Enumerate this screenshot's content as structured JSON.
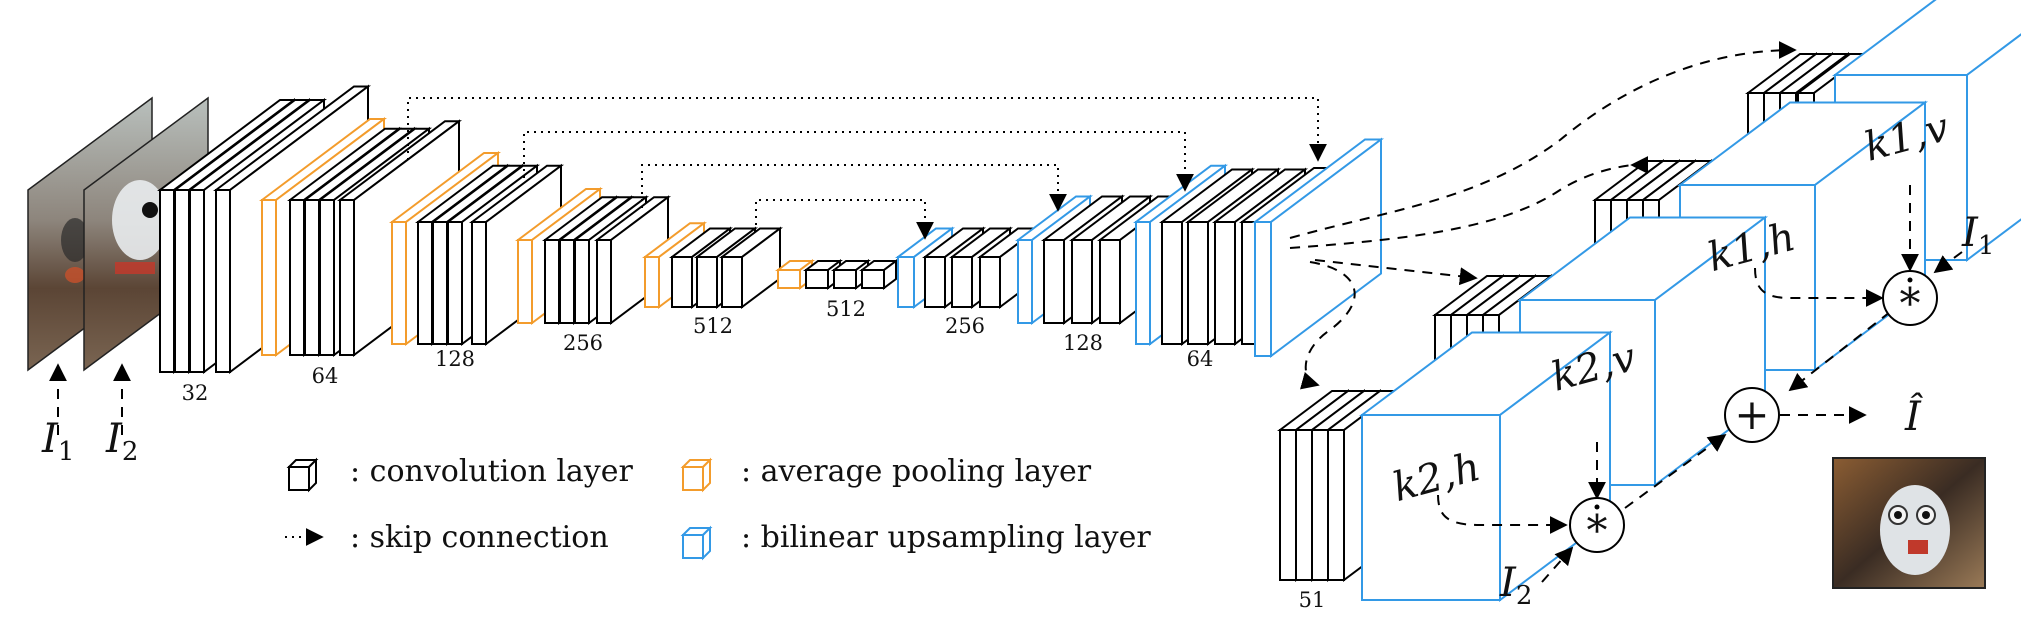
{
  "colors": {
    "conv": "#000000",
    "pool": "#f39c2c",
    "upsample": "#3399e6",
    "arrow": "#000000"
  },
  "inputs": {
    "i1_base": "I",
    "i1_sub": "1",
    "i2_base": "I",
    "i2_sub": "2"
  },
  "channels": {
    "c32": "32",
    "c64": "64",
    "c128": "128",
    "c256": "256",
    "c512a": "512",
    "c512b": "512",
    "c256u": "256",
    "c128u": "128",
    "c64u": "64",
    "c51": "51"
  },
  "kernels": {
    "k1v": "k1,v",
    "k1h": "k1,h",
    "k2v": "k2,v",
    "k2h": "k2,h"
  },
  "operators": {
    "conv_op": "*",
    "plus_op": "+"
  },
  "outputs": {
    "i1_base": "I",
    "i1_sub": "1",
    "i2_base": "I",
    "i2_sub": "2",
    "result": "Î"
  },
  "legend": {
    "conv": ": convolution layer",
    "pool": ": average pooling layer",
    "skip": ": skip connection",
    "upsample": ": bilinear upsampling layer"
  },
  "icons": {
    "input_frame": "photo-thumbnail",
    "output_frame": "photo-thumbnail"
  }
}
